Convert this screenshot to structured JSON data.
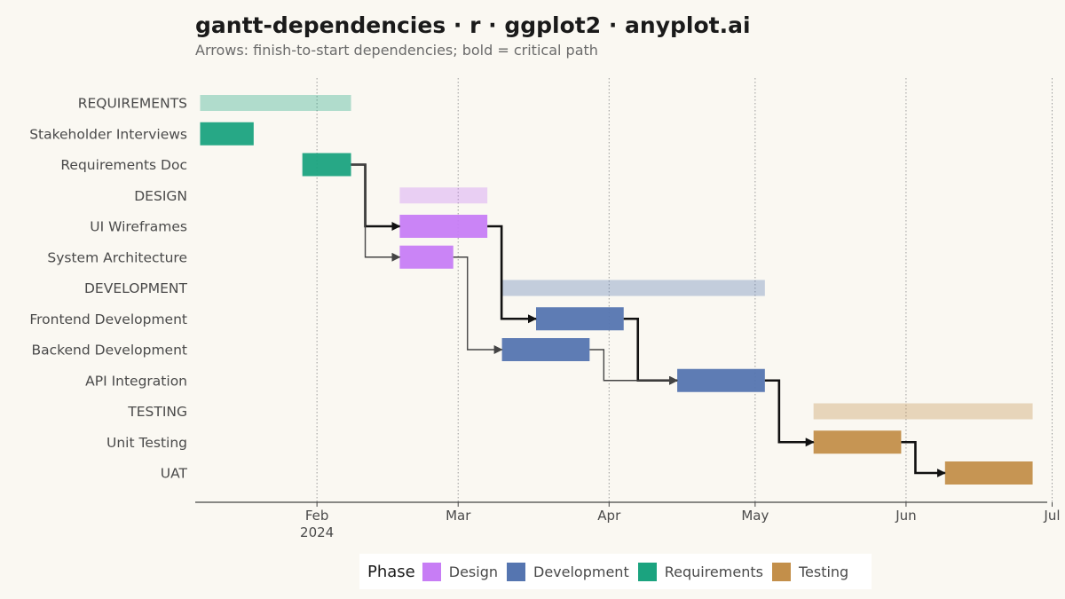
{
  "chart_data": {
    "type": "gantt",
    "title": "gantt-dependencies · r · ggplot2 · anyplot.ai",
    "subtitle": "Arrows: finish-to-start dependencies; bold = critical path",
    "x_axis": {
      "type": "date",
      "range": [
        "2024-01-07",
        "2024-06-30"
      ],
      "ticks": [
        {
          "date": "2024-02-01",
          "label": "Feb",
          "sublabel": "2024"
        },
        {
          "date": "2024-03-01",
          "label": "Mar",
          "sublabel": ""
        },
        {
          "date": "2024-04-01",
          "label": "Apr",
          "sublabel": ""
        },
        {
          "date": "2024-05-01",
          "label": "May",
          "sublabel": ""
        },
        {
          "date": "2024-06-01",
          "label": "Jun",
          "sublabel": ""
        },
        {
          "date": "2024-07-01",
          "label": "Jul",
          "sublabel": ""
        }
      ]
    },
    "grid": "vertical-dotted",
    "colors": {
      "Requirements": "#1BA37F",
      "Design": "#C77DF5",
      "Development": "#5575B0",
      "Testing": "#C38F4A"
    },
    "rows": [
      {
        "label": "REQUIREMENTS",
        "kind": "phase",
        "phase": "Requirements",
        "start": "2024-01-08",
        "end": "2024-02-08"
      },
      {
        "label": "Stakeholder Interviews",
        "kind": "task",
        "phase": "Requirements",
        "start": "2024-01-08",
        "end": "2024-01-19"
      },
      {
        "label": "Requirements Doc",
        "kind": "task",
        "phase": "Requirements",
        "start": "2024-01-29",
        "end": "2024-02-08"
      },
      {
        "label": "DESIGN",
        "kind": "phase",
        "phase": "Design",
        "start": "2024-02-18",
        "end": "2024-03-07"
      },
      {
        "label": "UI Wireframes",
        "kind": "task",
        "phase": "Design",
        "start": "2024-02-18",
        "end": "2024-03-07"
      },
      {
        "label": "System Architecture",
        "kind": "task",
        "phase": "Design",
        "start": "2024-02-18",
        "end": "2024-02-29"
      },
      {
        "label": "DEVELOPMENT",
        "kind": "phase",
        "phase": "Development",
        "start": "2024-03-10",
        "end": "2024-05-03"
      },
      {
        "label": "Frontend Development",
        "kind": "task",
        "phase": "Development",
        "start": "2024-03-17",
        "end": "2024-04-04"
      },
      {
        "label": "Backend Development",
        "kind": "task",
        "phase": "Development",
        "start": "2024-03-10",
        "end": "2024-03-28"
      },
      {
        "label": "API Integration",
        "kind": "task",
        "phase": "Development",
        "start": "2024-04-15",
        "end": "2024-05-03"
      },
      {
        "label": "TESTING",
        "kind": "phase",
        "phase": "Testing",
        "start": "2024-05-13",
        "end": "2024-06-27"
      },
      {
        "label": "Unit Testing",
        "kind": "task",
        "phase": "Testing",
        "start": "2024-05-13",
        "end": "2024-05-31"
      },
      {
        "label": "UAT",
        "kind": "task",
        "phase": "Testing",
        "start": "2024-06-09",
        "end": "2024-06-27"
      }
    ],
    "dependencies": [
      {
        "from": "Requirements Doc",
        "to": "UI Wireframes",
        "critical": true
      },
      {
        "from": "Requirements Doc",
        "to": "System Architecture",
        "critical": false
      },
      {
        "from": "UI Wireframes",
        "to": "Frontend Development",
        "critical": true
      },
      {
        "from": "System Architecture",
        "to": "Backend Development",
        "critical": false
      },
      {
        "from": "Frontend Development",
        "to": "API Integration",
        "critical": true
      },
      {
        "from": "Backend Development",
        "to": "API Integration",
        "critical": false
      },
      {
        "from": "API Integration",
        "to": "Unit Testing",
        "critical": true
      },
      {
        "from": "Unit Testing",
        "to": "UAT",
        "critical": true
      }
    ],
    "legend": {
      "title": "Phase",
      "position": "bottom",
      "items": [
        "Design",
        "Development",
        "Requirements",
        "Testing"
      ]
    }
  }
}
